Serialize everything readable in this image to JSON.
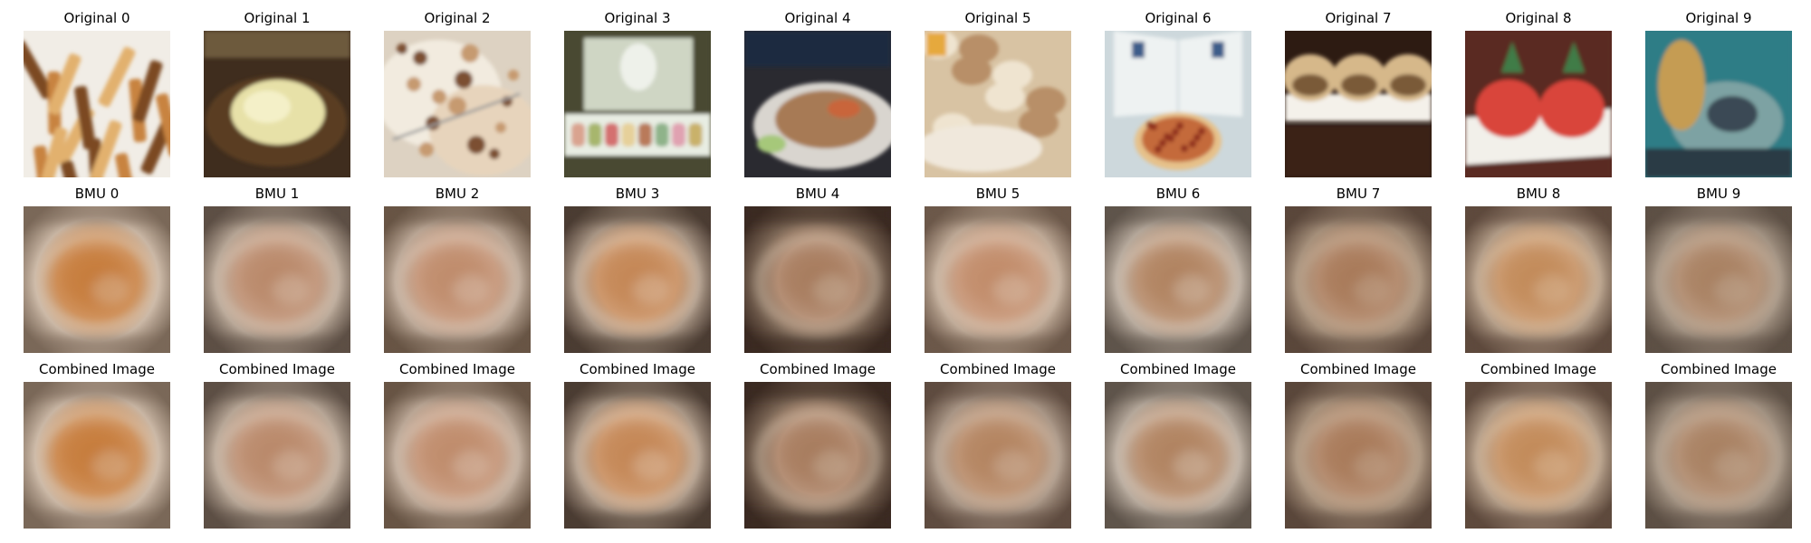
{
  "rows": [
    {
      "label": "Original",
      "titles": [
        "Original 0",
        "Original 1",
        "Original 2",
        "Original 3",
        "Original 4",
        "Original 5",
        "Original 6",
        "Original 7",
        "Original 8",
        "Original 9"
      ]
    },
    {
      "label": "BMU",
      "titles": [
        "BMU 0",
        "BMU 1",
        "BMU 2",
        "BMU 3",
        "BMU 4",
        "BMU 5",
        "BMU 6",
        "BMU 7",
        "BMU 8",
        "BMU 9"
      ]
    },
    {
      "label": "Combined",
      "titles": [
        "Combined Image",
        "Combined Image",
        "Combined Image",
        "Combined Image",
        "Combined Image",
        "Combined Image",
        "Combined Image",
        "Combined Image",
        "Combined Image",
        "Combined Image"
      ]
    }
  ],
  "images": {
    "original": [
      {
        "subject": "french fries",
        "bg": "#f1ede6",
        "c1": "#c8833f",
        "c2": "#e2b16e",
        "c3": "#7b4a23"
      },
      {
        "subject": "mashed potato dish",
        "bg": "#3f2d1e",
        "c1": "#e7e1a8",
        "c2": "#5a3e20",
        "c3": "#c0b26a"
      },
      {
        "subject": "flatbread",
        "bg": "#ddd2c2",
        "c1": "#c69a70",
        "c2": "#f2ebdf",
        "c3": "#7b4f30"
      },
      {
        "subject": "macarons in box",
        "bg": "#4a4a32",
        "c1": "#e8ede3",
        "c2": "#c68c76",
        "c3": "#8fa06a"
      },
      {
        "subject": "noodle plate",
        "bg": "#2a2a30",
        "c1": "#a77a55",
        "c2": "#d9d5cf",
        "c3": "#564032"
      },
      {
        "subject": "baked goods",
        "bg": "#d8c3a3",
        "c1": "#b88f68",
        "c2": "#efe4d0",
        "c3": "#e6a93c"
      },
      {
        "subject": "pizza",
        "bg": "#cdd8dc",
        "c1": "#c46a3a",
        "c2": "#8f2e1f",
        "c3": "#e6c18a"
      },
      {
        "subject": "sandwich wraps",
        "bg": "#2d1b12",
        "c1": "#d6b88a",
        "c2": "#f4f1ea",
        "c3": "#7a5a39"
      },
      {
        "subject": "sashimi plate",
        "bg": "#5a2b22",
        "c1": "#d9443a",
        "c2": "#f2f0ea",
        "c3": "#3f7b46"
      },
      {
        "subject": "colorful dish",
        "bg": "#2e7d86",
        "c1": "#7da2a3",
        "c2": "#3a4a55",
        "c3": "#c59c52"
      }
    ],
    "bmu": [
      {
        "bg": "#c8b5a3",
        "c1": "#c67b3a",
        "c2": "#e3d1bf",
        "dark": "#7a6858"
      },
      {
        "bg": "#b6a595",
        "c1": "#b98869",
        "c2": "#e2d2c2",
        "dark": "#5d4f45"
      },
      {
        "bg": "#b9a594",
        "c1": "#bf8b6b",
        "c2": "#e4d6c8",
        "dark": "#685545"
      },
      {
        "bg": "#a89584",
        "c1": "#c48654",
        "c2": "#e7d6c4",
        "dark": "#4b3c33"
      },
      {
        "bg": "#7b6655",
        "c1": "#a77b5d",
        "c2": "#d6c6b3",
        "dark": "#3b2a22"
      },
      {
        "bg": "#bda895",
        "c1": "#c18b69",
        "c2": "#e4d5c5",
        "dark": "#6c584a"
      },
      {
        "bg": "#b4a79a",
        "c1": "#b0825f",
        "c2": "#e5d8cb",
        "dark": "#5f544b"
      },
      {
        "bg": "#a58f7a",
        "c1": "#a87958",
        "c2": "#cdb9a3",
        "dark": "#5a473b"
      },
      {
        "bg": "#b19b86",
        "c1": "#c28a59",
        "c2": "#e3cbb0",
        "dark": "#5e4a3d"
      },
      {
        "bg": "#a29282",
        "c1": "#a88061",
        "c2": "#cbbaa7",
        "dark": "#5d5045"
      }
    ],
    "combined": [
      {
        "bg": "#c8b5a3",
        "c1": "#c67b3a",
        "c2": "#e3d1bf",
        "dark": "#7a6858"
      },
      {
        "bg": "#b6a595",
        "c1": "#b98869",
        "c2": "#e2d2c2",
        "dark": "#5d4f45"
      },
      {
        "bg": "#b9a594",
        "c1": "#bf8b6b",
        "c2": "#e4d6c8",
        "dark": "#685545"
      },
      {
        "bg": "#a89584",
        "c1": "#c48654",
        "c2": "#e7d6c4",
        "dark": "#4b3c33"
      },
      {
        "bg": "#7b6655",
        "c1": "#a77b5d",
        "c2": "#d6c6b3",
        "dark": "#3b2a22"
      },
      {
        "bg": "#a89585",
        "c1": "#b3835f",
        "c2": "#d8c8b8",
        "dark": "#5f4c40"
      },
      {
        "bg": "#b4a79a",
        "c1": "#b0825f",
        "c2": "#e5d8cb",
        "dark": "#5f544b"
      },
      {
        "bg": "#a58f7a",
        "c1": "#a87958",
        "c2": "#cdb9a3",
        "dark": "#5a473b"
      },
      {
        "bg": "#b19b86",
        "c1": "#c28a59",
        "c2": "#e3cbb0",
        "dark": "#5e4a3d"
      },
      {
        "bg": "#a29282",
        "c1": "#a88061",
        "c2": "#cbbaa7",
        "dark": "#5d5045"
      }
    ]
  }
}
